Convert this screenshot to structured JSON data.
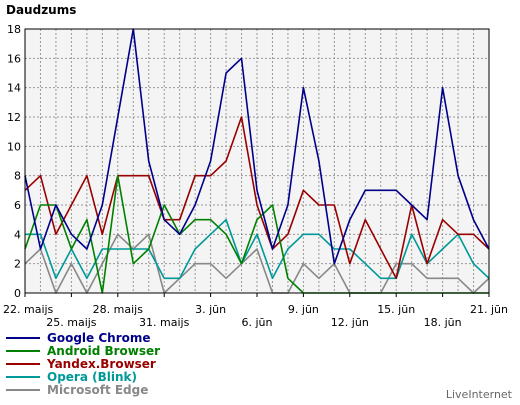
{
  "chart_data": {
    "type": "line",
    "title": "Daudzums",
    "ylim": [
      0,
      18
    ],
    "yticks": [
      0,
      2,
      4,
      6,
      8,
      10,
      12,
      14,
      16,
      18
    ],
    "x": [
      "22. maijs",
      "23. maijs",
      "24. maijs",
      "25. maijs",
      "26. maijs",
      "27. maijs",
      "28. maijs",
      "29. maijs",
      "30. maijs",
      "31. maijs",
      "1. jūn",
      "2. jūn",
      "3. jūn",
      "4. jūn",
      "5. jūn",
      "6. jūn",
      "7. jūn",
      "8. jūn",
      "9. jūn",
      "10. jūn",
      "11. jūn",
      "12. jūn",
      "13. jūn",
      "14. jūn",
      "15. jūn",
      "16. jūn",
      "17. jūn",
      "18. jūn",
      "19. jūn",
      "20. jūn",
      "21. jūn"
    ],
    "xtick_labels_row1": [
      {
        "i": 0,
        "label": "22. maijs"
      },
      {
        "i": 6,
        "label": "28. maijs"
      },
      {
        "i": 12,
        "label": "3. jūn"
      },
      {
        "i": 18,
        "label": "9. jūn"
      },
      {
        "i": 24,
        "label": "15. jūn"
      },
      {
        "i": 30,
        "label": "21. jūn"
      }
    ],
    "xtick_labels_row2": [
      {
        "i": 3,
        "label": "25. maijs"
      },
      {
        "i": 9,
        "label": "31. maijs"
      },
      {
        "i": 15,
        "label": "6. jūn"
      },
      {
        "i": 21,
        "label": "12. jūn"
      },
      {
        "i": 27,
        "label": "18. jūn"
      }
    ],
    "grid": true,
    "legend_position": "bottom-left",
    "series": [
      {
        "name": "Google Chrome",
        "color": "#00008b",
        "values": [
          8,
          3,
          6,
          4,
          3,
          6,
          12,
          18,
          9,
          5,
          4,
          6,
          9,
          15,
          16,
          7,
          3,
          6,
          14,
          9,
          2,
          5,
          7,
          7,
          7,
          6,
          5,
          14,
          8,
          5,
          3
        ]
      },
      {
        "name": "Android Browser",
        "color": "#008000",
        "values": [
          3,
          6,
          6,
          3,
          5,
          0,
          8,
          2,
          3,
          6,
          4,
          5,
          5,
          4,
          2,
          5,
          6,
          1,
          0,
          0,
          0,
          0,
          0,
          0,
          0,
          0,
          0,
          0,
          0,
          0,
          0
        ]
      },
      {
        "name": "Yandex.Browser",
        "color": "#990000",
        "values": [
          7,
          8,
          4,
          6,
          8,
          4,
          8,
          8,
          8,
          5,
          5,
          8,
          8,
          9,
          12,
          6,
          3,
          4,
          7,
          6,
          6,
          2,
          5,
          3,
          1,
          6,
          2,
          5,
          4,
          4,
          3
        ]
      },
      {
        "name": "Opera (Blink)",
        "color": "#009999",
        "values": [
          4,
          4,
          1,
          3,
          1,
          3,
          3,
          3,
          3,
          1,
          1,
          3,
          4,
          5,
          2,
          4,
          1,
          3,
          4,
          4,
          3,
          3,
          2,
          1,
          1,
          4,
          2,
          3,
          4,
          2,
          1
        ]
      },
      {
        "name": "Microsoft Edge",
        "color": "#888888",
        "values": [
          2,
          3,
          0,
          2,
          0,
          2,
          4,
          3,
          4,
          0,
          1,
          2,
          2,
          1,
          2,
          3,
          0,
          0,
          2,
          1,
          2,
          0,
          0,
          0,
          2,
          2,
          1,
          1,
          1,
          0,
          1
        ]
      }
    ]
  },
  "watermark": "LiveInternet"
}
